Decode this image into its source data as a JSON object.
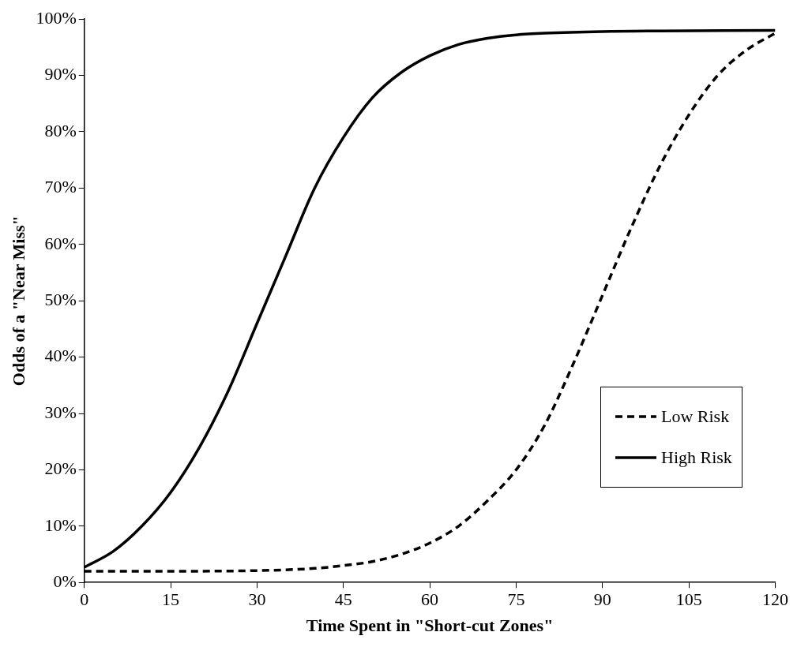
{
  "chart_data": {
    "type": "line",
    "xlabel": "Time Spent in \"Short-cut Zones\"",
    "ylabel": "Odds of a \"Near Miss\"",
    "xlim": [
      0,
      120
    ],
    "xticks": [
      0,
      15,
      30,
      45,
      60,
      75,
      90,
      105,
      120
    ],
    "ylim": [
      0,
      100
    ],
    "yticks": [
      {
        "value": 0,
        "label": "0%"
      },
      {
        "value": 10,
        "label": "10%"
      },
      {
        "value": 20,
        "label": "20%"
      },
      {
        "value": 30,
        "label": "30%"
      },
      {
        "value": 40,
        "label": "40%"
      },
      {
        "value": 50,
        "label": "50%"
      },
      {
        "value": 60,
        "label": "60%"
      },
      {
        "value": 70,
        "label": "70%"
      },
      {
        "value": 80,
        "label": "80%"
      },
      {
        "value": 90,
        "label": "90%"
      },
      {
        "value": 100,
        "label": "100%"
      }
    ],
    "grid": false,
    "legend": "bottom right",
    "marker": "none",
    "series": [
      {
        "name": "Low Risk",
        "color": "#000000",
        "line_style": "dashed",
        "x": [
          0,
          15,
          30,
          40,
          45,
          50,
          55,
          60,
          65,
          70,
          75,
          80,
          85,
          90,
          95,
          100,
          105,
          110,
          115,
          120
        ],
        "values": [
          2,
          2,
          2.1,
          2.5,
          3,
          3.7,
          5,
          7,
          10,
          14.5,
          20,
          28,
          39,
          51,
          63,
          74,
          83,
          90,
          94.5,
          97.5
        ]
      },
      {
        "name": "High Risk",
        "color": "#000000",
        "line_style": "solid",
        "x": [
          0,
          5,
          10,
          15,
          20,
          25,
          30,
          35,
          40,
          45,
          50,
          55,
          60,
          65,
          70,
          75,
          80,
          90,
          100,
          120
        ],
        "values": [
          2.7,
          5.5,
          10,
          16,
          24,
          34,
          46,
          58,
          70,
          79,
          86,
          90.5,
          93.5,
          95.5,
          96.6,
          97.2,
          97.5,
          97.8,
          97.9,
          98
        ]
      }
    ]
  }
}
